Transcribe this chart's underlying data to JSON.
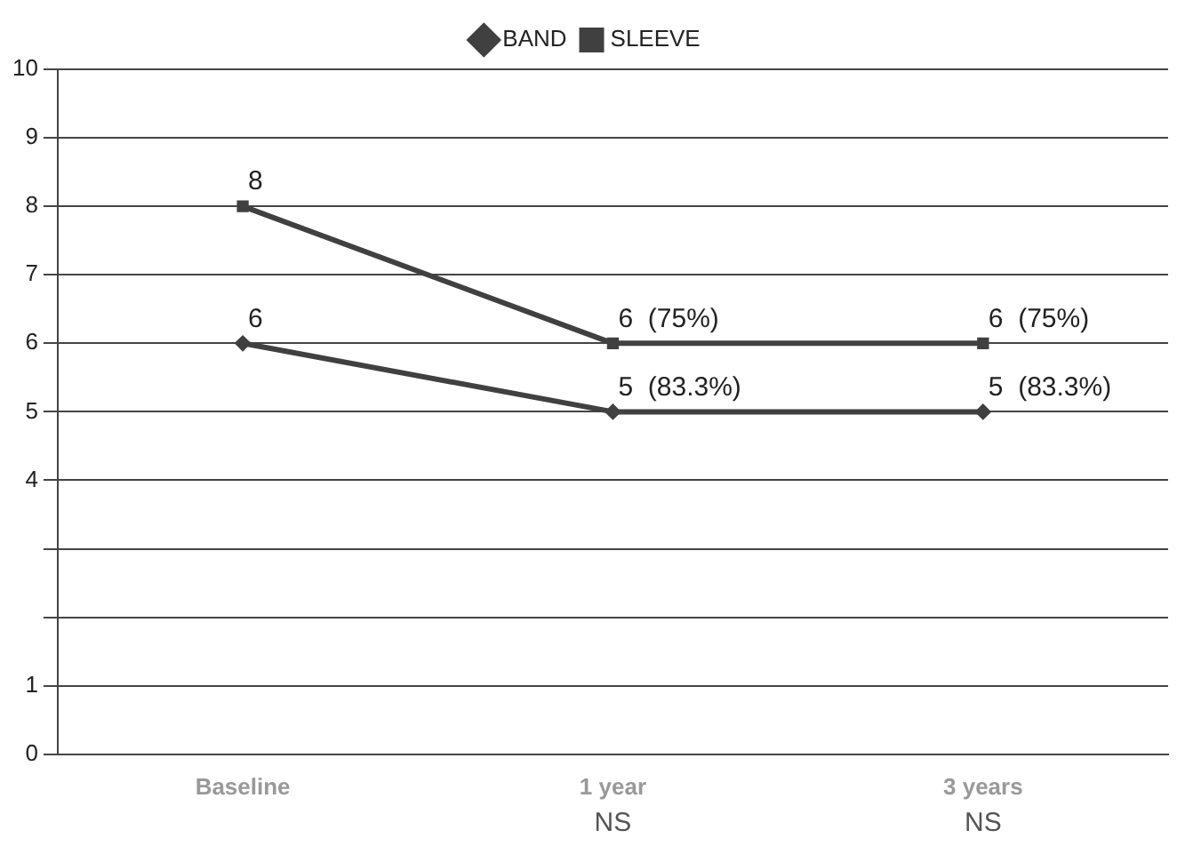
{
  "chart_data": {
    "type": "line",
    "categories": [
      "Baseline",
      "1 year",
      "3 years"
    ],
    "series": [
      {
        "name": "BAND",
        "color": "#404040",
        "marker": "diamond",
        "values": [
          6,
          5,
          5
        ],
        "value_labels": [
          "6",
          "5  (83.3%)",
          "5  (83.3%)"
        ]
      },
      {
        "name": "SLEEVE",
        "color": "#404040",
        "marker": "square",
        "values": [
          8,
          6,
          6
        ],
        "value_labels": [
          "8",
          "6  (75%)",
          "6  (75%)"
        ]
      }
    ],
    "ylim": [
      0,
      10
    ],
    "yticks": [
      0,
      1,
      {
        "value": 2,
        "label": null
      },
      {
        "value": 3,
        "label": null
      },
      4,
      5,
      6,
      7,
      8,
      9,
      10
    ],
    "grid": "y",
    "legend": "top",
    "line_style": "solid",
    "annotations": [
      "NS",
      "NS"
    ]
  }
}
